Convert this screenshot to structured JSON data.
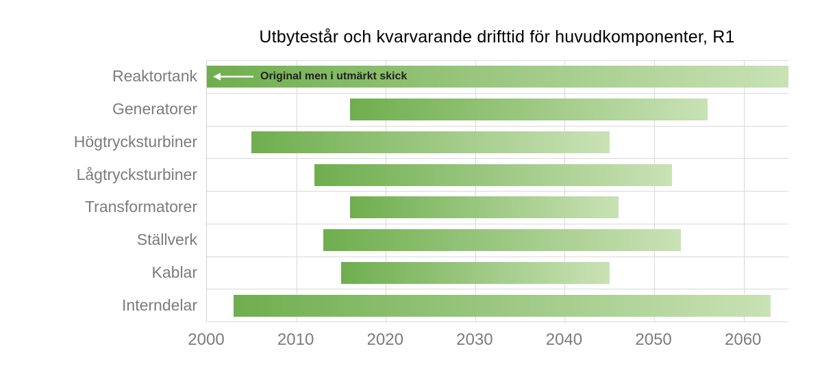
{
  "chart_data": {
    "type": "bar",
    "orientation": "horizontal",
    "title": "Utbytestår och kvarvarande drifttid för huvudkomponenter, R1",
    "x_axis": {
      "min": 2000,
      "max": 2065,
      "ticks": [
        2000,
        2010,
        2020,
        2030,
        2040,
        2050,
        2060
      ]
    },
    "xlabel": "",
    "ylabel": "",
    "grid": true,
    "legend": null,
    "categories": [
      "Reaktortank",
      "Generatorer",
      "Högtrycksturbiner",
      "Lågtrycksturbiner",
      "Transformatorer",
      "Ställverk",
      "Kablar",
      "Interndelar"
    ],
    "bars": [
      {
        "label": "Reaktortank",
        "start": 2000,
        "end": 2065,
        "annotation": "Original men i utmärkt skick"
      },
      {
        "label": "Generatorer",
        "start": 2016,
        "end": 2056
      },
      {
        "label": "Högtrycksturbiner",
        "start": 2005,
        "end": 2045
      },
      {
        "label": "Lågtrycksturbiner",
        "start": 2012,
        "end": 2052
      },
      {
        "label": "Transformatorer",
        "start": 2016,
        "end": 2046
      },
      {
        "label": "Ställverk",
        "start": 2013,
        "end": 2053
      },
      {
        "label": "Kablar",
        "start": 2015,
        "end": 2045
      },
      {
        "label": "Interndelar",
        "start": 2003,
        "end": 2063
      }
    ],
    "colors": {
      "bar_gradient_start": "#6FAE4E",
      "bar_gradient_end": "#C9E2B5",
      "gridline": "#D9D9D9",
      "axis_label": "#7B7B7B",
      "title_text": "#000000",
      "annotation_text": "#212121",
      "annotation_arrow": "#FFFFFF"
    }
  }
}
